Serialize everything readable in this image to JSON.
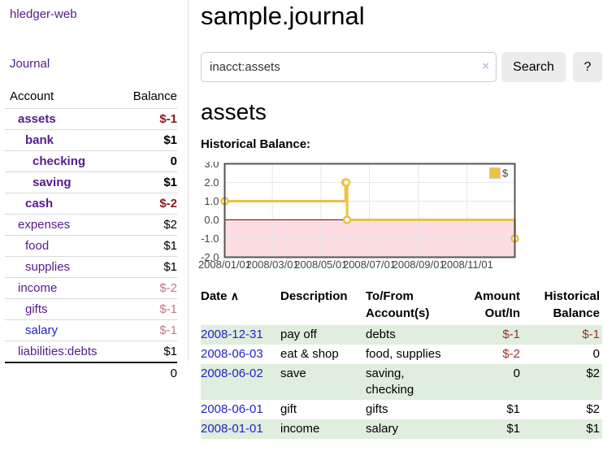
{
  "brand": "hledger-web",
  "nav": {
    "journal": "Journal"
  },
  "sidebar": {
    "columns": {
      "account": "Account",
      "balance": "Balance"
    },
    "accounts": [
      {
        "name": "assets",
        "depth": 1,
        "balance": "$-1",
        "bold": true,
        "neg": "strong",
        "link": "purple"
      },
      {
        "name": "bank",
        "depth": 2,
        "balance": "$1",
        "bold": true,
        "neg": null,
        "link": "purple"
      },
      {
        "name": "checking",
        "depth": 3,
        "balance": "0",
        "bold": true,
        "neg": null,
        "link": "purple"
      },
      {
        "name": "saving",
        "depth": 3,
        "balance": "$1",
        "bold": true,
        "neg": null,
        "link": "purple"
      },
      {
        "name": "cash",
        "depth": 2,
        "balance": "$-2",
        "bold": true,
        "neg": "strong",
        "link": "purple"
      },
      {
        "name": "expenses",
        "depth": 1,
        "balance": "$2",
        "bold": false,
        "neg": null,
        "link": "purple"
      },
      {
        "name": "food",
        "depth": 2,
        "balance": "$1",
        "bold": false,
        "neg": null,
        "link": "purple"
      },
      {
        "name": "supplies",
        "depth": 2,
        "balance": "$1",
        "bold": false,
        "neg": null,
        "link": "purple"
      },
      {
        "name": "income",
        "depth": 1,
        "balance": "$-2",
        "bold": false,
        "neg": "soft",
        "link": "purple"
      },
      {
        "name": "gifts",
        "depth": 2,
        "balance": "$-1",
        "bold": false,
        "neg": "soft",
        "link": "purple"
      },
      {
        "name": "salary",
        "depth": 2,
        "balance": "$-1",
        "bold": false,
        "neg": "soft",
        "link": "blue"
      },
      {
        "name": "liabilities:debts",
        "depth": 1,
        "balance": "$1",
        "bold": false,
        "neg": null,
        "link": "purple"
      }
    ],
    "total": "0"
  },
  "main": {
    "title": "sample.journal",
    "search": {
      "value": "inacct:assets",
      "clear": "×",
      "button": "Search",
      "help": "?"
    },
    "heading": "assets",
    "chart_label": "Historical Balance:"
  },
  "chart_data": {
    "type": "line",
    "steps": true,
    "title": "Historical Balance:",
    "legend": "$",
    "legend_position": "top-right",
    "x_range": [
      "2008-01-01",
      "2008-12-31"
    ],
    "ylim": [
      -2.0,
      3.0
    ],
    "y_ticks": [
      "3.0",
      "2.0",
      "1.0",
      "0.0",
      "-1.0",
      "-2.0"
    ],
    "x_ticks": [
      "2008/01/01",
      "2008/03/01",
      "2008/05/01",
      "2008/07/01",
      "2008/09/01",
      "2008/11/01"
    ],
    "series": [
      {
        "name": "$",
        "color": "#EDC240",
        "points": [
          {
            "date": "2008-01-01",
            "value": 1
          },
          {
            "date": "2008-06-01",
            "value": 2
          },
          {
            "date": "2008-06-02",
            "value": 2
          },
          {
            "date": "2008-06-03",
            "value": 0
          },
          {
            "date": "2008-12-31",
            "value": -1
          }
        ]
      }
    ],
    "grid": true,
    "zero_line_color": "#800000",
    "negative_region_color": "#fcdee2",
    "grid_color": "#e7e7e7",
    "border_color": "#545454"
  },
  "register": {
    "columns": {
      "date": "Date",
      "sort_icon": "∧",
      "description": "Description",
      "accounts": "To/From Account(s)",
      "amount": "Amount Out/In",
      "balance": "Historical Balance"
    },
    "rows": [
      {
        "date": "2008-12-31",
        "description": "pay off",
        "accounts": "debts",
        "amount": "$-1",
        "amount_neg": true,
        "balance": "$-1",
        "balance_neg": true,
        "green": true
      },
      {
        "date": "2008-06-03",
        "description": "eat & shop",
        "accounts": "food, supplies",
        "amount": "$-2",
        "amount_neg": true,
        "balance": "0",
        "balance_neg": false,
        "green": false
      },
      {
        "date": "2008-06-02",
        "description": "save",
        "accounts": "saving, checking",
        "amount": "0",
        "amount_neg": false,
        "balance": "$2",
        "balance_neg": false,
        "green": true
      },
      {
        "date": "2008-06-01",
        "description": "gift",
        "accounts": "gifts",
        "amount": "$1",
        "amount_neg": false,
        "balance": "$2",
        "balance_neg": false,
        "green": false
      },
      {
        "date": "2008-01-01",
        "description": "income",
        "accounts": "salary",
        "amount": "$1",
        "amount_neg": false,
        "balance": "$1",
        "balance_neg": false,
        "green": true
      }
    ]
  }
}
